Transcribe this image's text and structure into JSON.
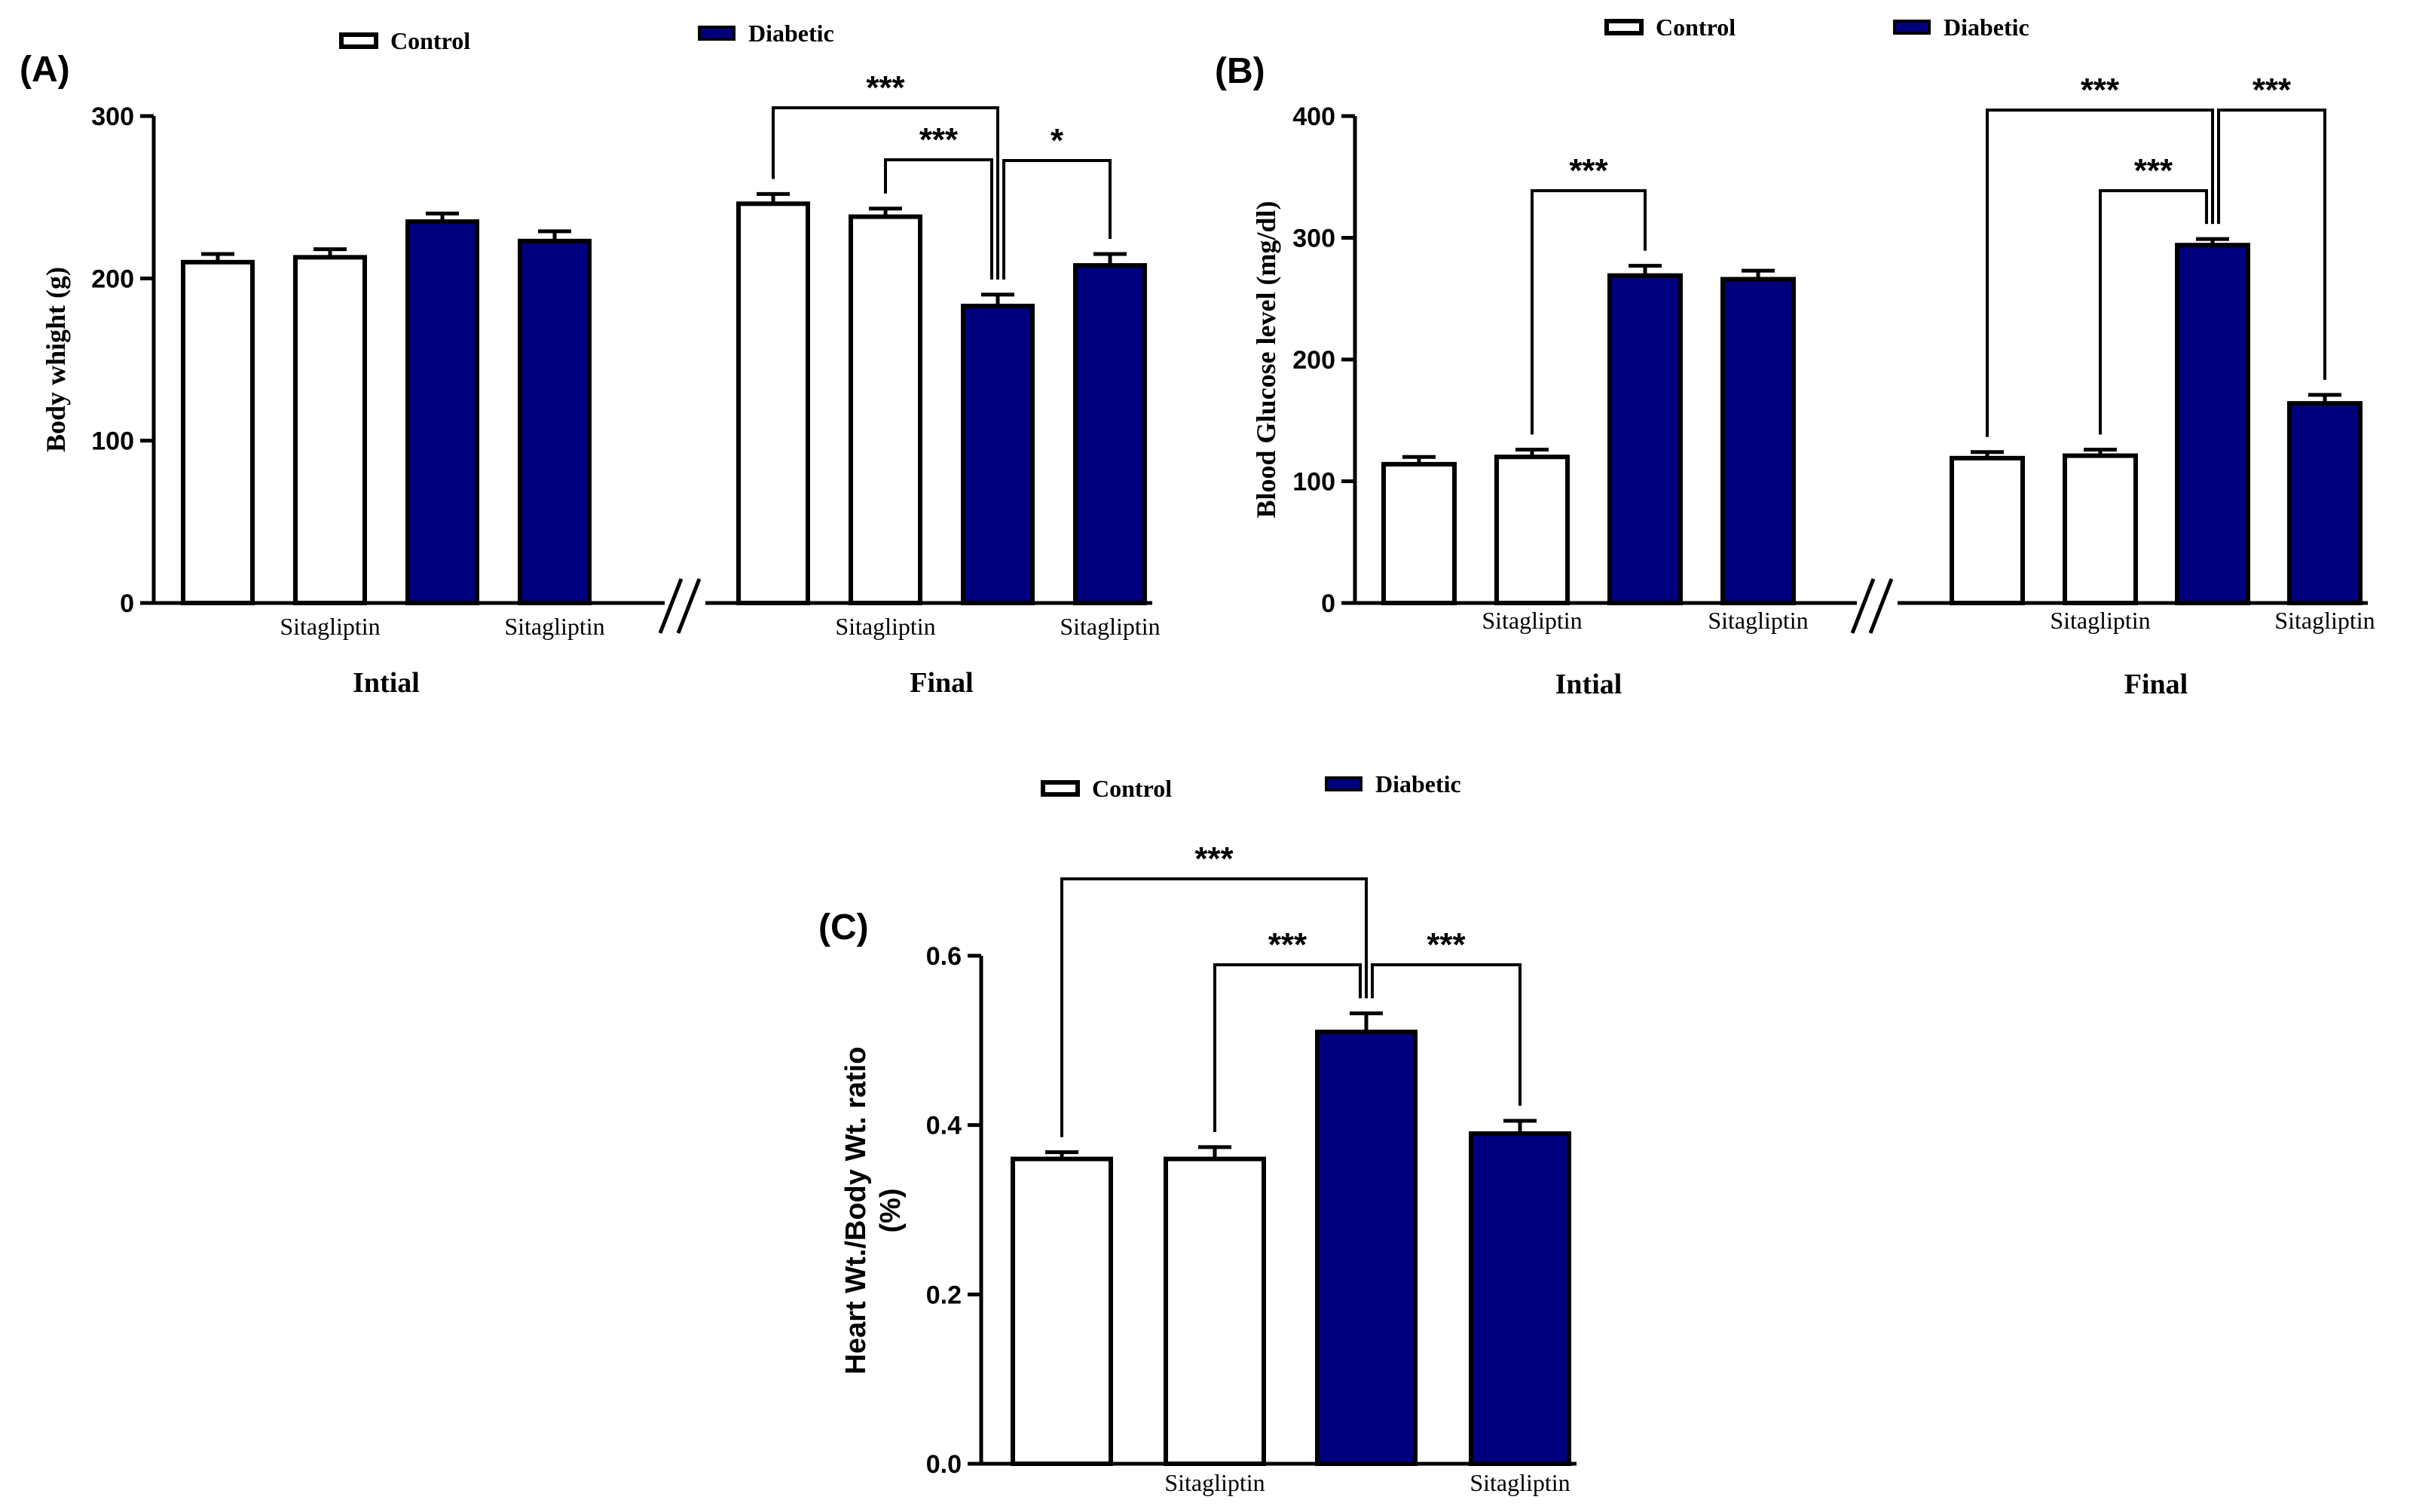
{
  "colors": {
    "control": "#ffffff",
    "diabetic": "#00007f",
    "stroke": "#000000"
  },
  "chart_data": [
    {
      "panel": "(A)",
      "type": "bar",
      "ylabel": "Body whight (g)",
      "ylim": [
        0,
        300
      ],
      "yticks": [
        "0",
        "100",
        "200",
        "300"
      ],
      "legend": [
        "Control",
        "Diabetic"
      ],
      "groups": [
        {
          "label": "Intial",
          "values": [
            210,
            213,
            235,
            223
          ],
          "errors": [
            5,
            5,
            5,
            6
          ]
        },
        {
          "label": "Final",
          "values": [
            246,
            238,
            183,
            208
          ],
          "errors": [
            6,
            5,
            7,
            7
          ]
        }
      ],
      "bar_groups": [
        "control",
        "control",
        "diabetic",
        "diabetic"
      ],
      "bar_labels": [
        "",
        "Sitagliptin",
        "",
        "Sitagliptin"
      ],
      "annotations": [
        {
          "text": "***",
          "group": 1,
          "from": 0,
          "to": 2
        },
        {
          "text": "***",
          "group": 1,
          "from": 1,
          "to": 2
        },
        {
          "text": "*",
          "group": 1,
          "from": 2,
          "to": 3
        }
      ]
    },
    {
      "panel": "(B)",
      "type": "bar",
      "ylabel": "Blood Glucose level (mg/dl)",
      "ylim": [
        0,
        400
      ],
      "yticks": [
        "0",
        "100",
        "200",
        "300",
        "400"
      ],
      "legend": [
        "Control",
        "Diabetic"
      ],
      "groups": [
        {
          "label": "Intial",
          "values": [
            114,
            120,
            269,
            266
          ],
          "errors": [
            6,
            6,
            8,
            7
          ]
        },
        {
          "label": "Final",
          "values": [
            119,
            121,
            294,
            164
          ],
          "errors": [
            5,
            5,
            5,
            7
          ]
        }
      ],
      "bar_groups": [
        "control",
        "control",
        "diabetic",
        "diabetic"
      ],
      "bar_labels": [
        "",
        "Sitagliptin",
        "",
        "Sitagliptin"
      ],
      "annotations": [
        {
          "text": "***",
          "group": 0,
          "from": 1,
          "to": 2
        },
        {
          "text": "***",
          "group": 1,
          "from": 0,
          "to": 2
        },
        {
          "text": "***",
          "group": 1,
          "from": 1,
          "to": 2
        },
        {
          "text": "***",
          "group": 1,
          "from": 2,
          "to": 3
        }
      ]
    },
    {
      "panel": "(C)",
      "type": "bar",
      "ylabel": "Heart Wt./Body Wt. ratio (%)",
      "ylim": [
        0,
        0.6
      ],
      "yticks": [
        "0.0",
        "0.2",
        "0.4",
        "0.6"
      ],
      "legend": [
        "Control",
        "Diabetic"
      ],
      "groups": [
        {
          "label": "",
          "values": [
            0.36,
            0.36,
            0.51,
            0.39
          ],
          "errors": [
            0.008,
            0.014,
            0.022,
            0.015
          ]
        }
      ],
      "bar_groups": [
        "control",
        "control",
        "diabetic",
        "diabetic"
      ],
      "bar_labels": [
        "",
        "Sitagliptin",
        "",
        "Sitagliptin"
      ],
      "annotations": [
        {
          "text": "***",
          "group": 0,
          "from": 0,
          "to": 2
        },
        {
          "text": "***",
          "group": 0,
          "from": 1,
          "to": 2
        },
        {
          "text": "***",
          "group": 0,
          "from": 2,
          "to": 3
        }
      ]
    }
  ]
}
